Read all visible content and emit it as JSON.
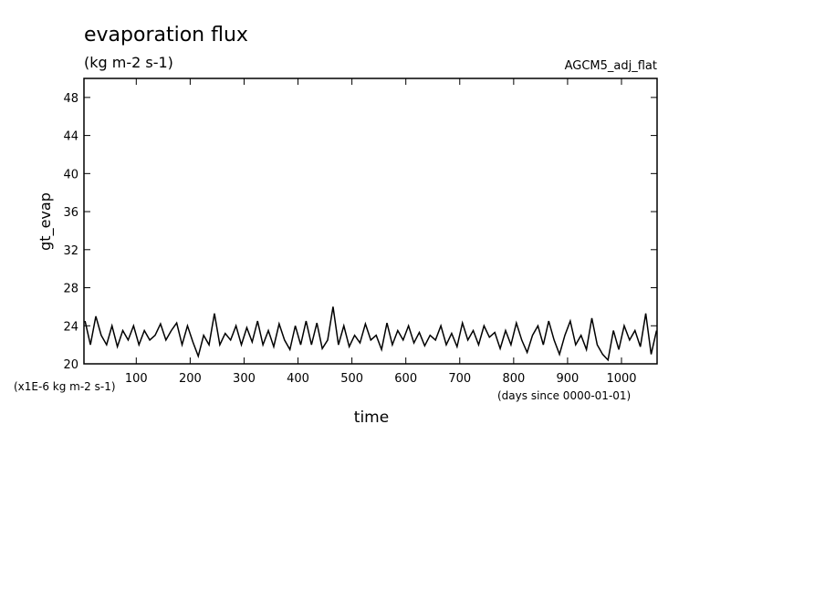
{
  "chart_data": {
    "type": "line",
    "title": "evaporation flux",
    "subtitle": "(kg m-2 s-1)",
    "annotation": "AGCM5_adj_flat",
    "y_label": "gt_evap",
    "x_label": "time",
    "y_unit": "(x1E-6 kg m-2 s-1)",
    "x_unit": "(days since 0000-01-01)",
    "xlim": [
      3,
      1066
    ],
    "ylim": [
      20,
      50
    ],
    "xticks": [
      100,
      200,
      300,
      400,
      500,
      600,
      700,
      800,
      900,
      1000
    ],
    "yticks": [
      20,
      24,
      28,
      32,
      36,
      40,
      44,
      48
    ],
    "x": [
      5,
      15,
      25,
      35,
      45,
      55,
      65,
      75,
      85,
      95,
      105,
      115,
      125,
      135,
      145,
      155,
      165,
      175,
      185,
      195,
      205,
      215,
      225,
      235,
      245,
      255,
      265,
      275,
      285,
      295,
      305,
      315,
      325,
      335,
      345,
      355,
      365,
      375,
      385,
      395,
      405,
      415,
      425,
      435,
      445,
      455,
      465,
      475,
      485,
      495,
      505,
      515,
      525,
      535,
      545,
      555,
      565,
      575,
      585,
      595,
      605,
      615,
      625,
      635,
      645,
      655,
      665,
      675,
      685,
      695,
      705,
      715,
      725,
      735,
      745,
      755,
      765,
      775,
      785,
      795,
      805,
      815,
      825,
      835,
      845,
      855,
      865,
      875,
      885,
      895,
      905,
      915,
      925,
      935,
      945,
      955,
      965,
      975,
      985,
      995,
      1005,
      1015,
      1025,
      1035,
      1045,
      1055,
      1065
    ],
    "series": [
      {
        "color": "#000000",
        "values": [
          24.5,
          22,
          25,
          23,
          22,
          24,
          21.8,
          23.5,
          22.5,
          24,
          22,
          23.5,
          22.5,
          23,
          24.2,
          22.5,
          23.5,
          24.3,
          22,
          24,
          22.3,
          20.8,
          23,
          22,
          25.3,
          22,
          23.2,
          22.5,
          24,
          22,
          23.8,
          22.3,
          24.5,
          22,
          23.5,
          21.8,
          24.2,
          22.5,
          21.5,
          24,
          22,
          24.5,
          22,
          24.3,
          21.6,
          22.5,
          26,
          22,
          24,
          21.8,
          23,
          22.2,
          24.2,
          22.5,
          23,
          21.5,
          24.3,
          22,
          23.5,
          22.5,
          24,
          22.2,
          23.3,
          21.9,
          23,
          22.5,
          24,
          22,
          23.2,
          21.8,
          24.3,
          22.5,
          23.5,
          22,
          24,
          22.8,
          23.3,
          21.6,
          23.5,
          22,
          24.3,
          22.5,
          21.2,
          23,
          24,
          22,
          24.5,
          22.5,
          21,
          23,
          24.5,
          22,
          23,
          21.5,
          24.8,
          22,
          21,
          20.4,
          23.5,
          21.5,
          24,
          22.5,
          23.5,
          21.8,
          25.3,
          21,
          23.5
        ]
      }
    ]
  }
}
